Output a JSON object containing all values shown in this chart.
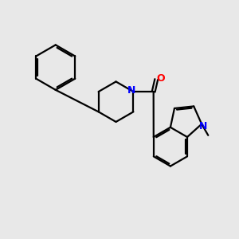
{
  "background_color": "#e8e8e8",
  "bond_color": "#000000",
  "N_color": "#0000ff",
  "O_color": "#ff0000",
  "line_width": 1.6,
  "figsize": [
    3.0,
    3.0
  ],
  "dpi": 100,
  "xlim": [
    0,
    10
  ],
  "ylim": [
    0,
    10
  ]
}
